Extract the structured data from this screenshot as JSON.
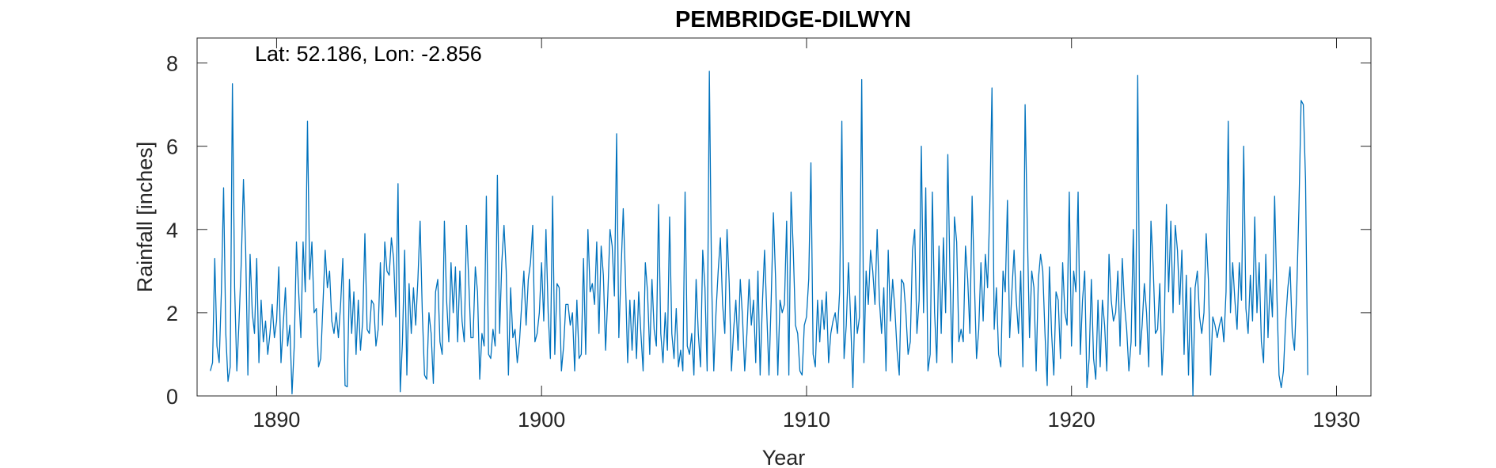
{
  "chart_data": {
    "type": "line",
    "title": "PEMBRIDGE-DILWYN",
    "annotation": "Lat: 52.186, Lon: -2.856",
    "xlabel": "Year",
    "ylabel": "Rainfall [inches]",
    "xlim": [
      1887,
      1931.3
    ],
    "ylim": [
      0,
      8.6
    ],
    "xticks": [
      1890,
      1900,
      1910,
      1920,
      1930
    ],
    "yticks": [
      0,
      2,
      4,
      6,
      8
    ],
    "grid": false,
    "box": true,
    "line_color": "#0072BD",
    "series": [
      {
        "x_start": 1887.5,
        "x_step": 0.08333,
        "values": [
          0.6,
          0.8,
          3.3,
          1.2,
          0.8,
          2.5,
          5.0,
          1.5,
          0.35,
          0.7,
          7.5,
          2.6,
          0.6,
          1.8,
          3.2,
          5.2,
          3.5,
          0.5,
          3.4,
          2.0,
          1.5,
          3.3,
          0.8,
          2.3,
          1.3,
          1.8,
          1.0,
          1.5,
          2.2,
          1.4,
          1.8,
          3.1,
          0.8,
          1.7,
          2.6,
          1.2,
          1.7,
          0.05,
          1.2,
          3.7,
          2.5,
          1.4,
          3.7,
          2.5,
          6.6,
          2.8,
          3.7,
          2.0,
          2.1,
          0.7,
          0.9,
          2.2,
          3.5,
          2.6,
          3.0,
          1.8,
          1.5,
          2.0,
          1.4,
          2.2,
          3.3,
          0.25,
          0.22,
          2.8,
          1.5,
          2.5,
          1.0,
          2.3,
          1.1,
          1.8,
          3.9,
          1.6,
          1.5,
          2.3,
          2.2,
          1.2,
          1.6,
          3.2,
          1.7,
          3.7,
          3.0,
          2.9,
          3.8,
          3.3,
          1.9,
          5.1,
          0.1,
          1.3,
          3.5,
          0.5,
          2.7,
          1.5,
          2.6,
          1.7,
          2.8,
          4.2,
          2.0,
          0.5,
          0.4,
          2.0,
          1.5,
          0.3,
          2.5,
          2.8,
          1.3,
          1.0,
          4.2,
          2.3,
          1.3,
          3.2,
          2.0,
          3.1,
          1.3,
          3.0,
          1.8,
          1.3,
          4.1,
          2.8,
          1.4,
          1.4,
          3.1,
          2.5,
          0.4,
          1.5,
          1.2,
          4.8,
          1.0,
          0.9,
          1.6,
          1.2,
          5.3,
          1.5,
          3.2,
          4.1,
          3.0,
          0.5,
          2.6,
          1.4,
          1.6,
          0.8,
          1.3,
          2.2,
          3.0,
          1.7,
          2.8,
          3.2,
          4.1,
          1.3,
          1.5,
          2.0,
          3.2,
          1.8,
          4.0,
          2.0,
          0.9,
          4.8,
          1.0,
          2.7,
          2.6,
          0.6,
          1.2,
          2.2,
          2.2,
          1.7,
          2.0,
          0.6,
          2.3,
          0.9,
          1.0,
          3.3,
          1.0,
          4.0,
          2.5,
          2.7,
          2.2,
          3.7,
          1.5,
          3.6,
          2.9,
          1.1,
          2.4,
          4.0,
          3.6,
          2.4,
          6.3,
          1.4,
          3.0,
          4.5,
          2.8,
          0.8,
          2.3,
          1.1,
          2.3,
          0.9,
          2.5,
          1.5,
          0.6,
          3.2,
          2.5,
          1.0,
          2.8,
          1.6,
          1.2,
          4.6,
          1.5,
          0.8,
          2.0,
          1.1,
          4.3,
          1.5,
          0.9,
          2.1,
          0.7,
          1.1,
          0.6,
          4.9,
          1.2,
          1.0,
          1.5,
          0.5,
          2.8,
          1.5,
          0.7,
          3.5,
          2.6,
          0.6,
          7.8,
          2.8,
          0.6,
          2.0,
          3.0,
          3.8,
          2.2,
          1.5,
          4.0,
          2.7,
          0.6,
          1.6,
          2.3,
          1.1,
          2.8,
          1.9,
          0.6,
          1.5,
          2.8,
          1.7,
          2.3,
          0.8,
          3.0,
          0.5,
          2.2,
          3.5,
          2.0,
          0.5,
          2.3,
          4.4,
          2.8,
          0.5,
          2.3,
          2.0,
          2.2,
          4.2,
          0.5,
          4.9,
          3.5,
          1.7,
          1.5,
          0.6,
          0.5,
          1.7,
          1.9,
          2.8,
          5.6,
          1.0,
          0.7,
          2.3,
          1.3,
          2.3,
          1.6,
          2.5,
          0.8,
          1.5,
          1.8,
          2.0,
          1.5,
          2.5,
          6.6,
          0.9,
          1.7,
          3.2,
          1.8,
          0.2,
          2.4,
          1.5,
          1.9,
          7.6,
          0.8,
          3.0,
          2.2,
          3.5,
          3.0,
          2.2,
          4.0,
          2.3,
          1.5,
          2.6,
          0.6,
          3.5,
          1.8,
          2.8,
          2.1,
          1.1,
          0.5,
          2.8,
          2.7,
          2.0,
          1.0,
          1.3,
          3.5,
          4.0,
          1.5,
          2.3,
          6.0,
          2.0,
          5.0,
          0.6,
          1.0,
          4.9,
          2.0,
          0.8,
          3.6,
          1.5,
          3.8,
          2.0,
          5.8,
          2.8,
          0.8,
          4.3,
          3.7,
          1.3,
          1.6,
          1.3,
          3.6,
          2.8,
          1.5,
          4.8,
          2.8,
          0.9,
          1.6,
          3.2,
          1.8,
          3.4,
          2.6,
          4.5,
          7.4,
          1.6,
          2.6,
          1.0,
          0.7,
          3.0,
          2.5,
          4.7,
          1.4,
          2.5,
          3.5,
          2.3,
          1.5,
          3.0,
          0.7,
          7.0,
          4.0,
          1.4,
          3.0,
          2.6,
          0.6,
          2.8,
          3.4,
          3.0,
          1.5,
          0.25,
          3.1,
          1.5,
          0.5,
          2.5,
          2.3,
          0.9,
          3.2,
          2.0,
          1.7,
          4.9,
          1.2,
          3.0,
          2.5,
          4.9,
          1.0,
          2.3,
          3.0,
          0.2,
          0.9,
          2.8,
          0.9,
          0.4,
          2.3,
          0.7,
          2.3,
          1.7,
          0.6,
          3.4,
          2.3,
          1.8,
          2.0,
          3.0,
          1.2,
          3.3,
          2.2,
          1.6,
          0.6,
          1.3,
          4.0,
          1.2,
          7.7,
          1.0,
          1.7,
          2.7,
          2.0,
          0.7,
          4.2,
          3.1,
          1.5,
          1.6,
          2.7,
          0.5,
          1.6,
          4.6,
          2.5,
          4.2,
          2.0,
          4.1,
          3.5,
          2.2,
          3.5,
          1.0,
          2.9,
          0.5,
          2.6,
          0.0,
          2.6,
          3.0,
          1.9,
          1.5,
          2.0,
          3.9,
          2.8,
          0.5,
          1.9,
          1.7,
          1.4,
          1.7,
          1.9,
          1.3,
          2.5,
          6.6,
          2.0,
          3.2,
          2.3,
          1.6,
          3.2,
          2.3,
          6.0,
          2.1,
          1.5,
          2.9,
          1.8,
          4.3,
          2.0,
          3.2,
          1.3,
          0.8,
          3.4,
          1.4,
          2.8,
          1.9,
          4.8,
          2.5,
          0.5,
          0.2,
          0.6,
          1.8,
          2.6,
          3.1,
          1.5,
          1.1,
          2.5,
          4.5,
          7.1,
          7.0,
          5.2,
          0.5
        ]
      }
    ]
  }
}
